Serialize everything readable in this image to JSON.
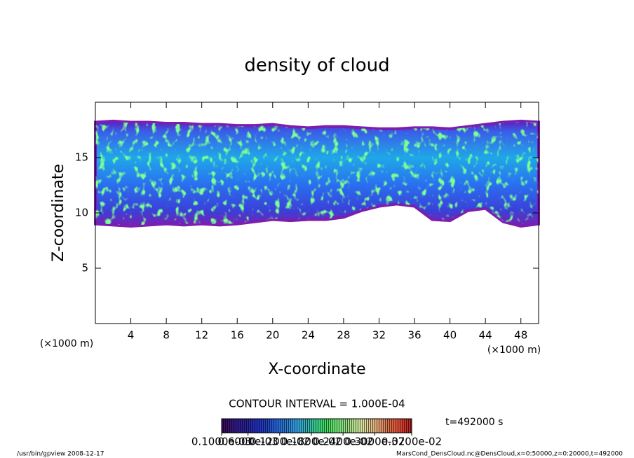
{
  "chart_data": {
    "type": "cloud",
    "title": "density of cloud",
    "x_label": "X-coordinate",
    "y_label": "Z-coordinate",
    "x_unit": "(×1000 m)",
    "y_unit": "(×1000 m)",
    "contour_interval": "CONTOUR INTERVAL = 1.000E-04",
    "time": "t=492000 s",
    "footer_left": "/usr/bin/gpview  2008-12-17",
    "footer_right": "MarsCond_DensCloud.nc@DensCloud,x=0:50000,z=0:20000,t=492000",
    "xlim": [
      0,
      50
    ],
    "xticks": [
      4,
      8,
      12,
      16,
      20,
      24,
      28,
      32,
      36,
      40,
      44,
      48
    ],
    "ylim": [
      0,
      20
    ],
    "yticks": [
      5,
      10,
      15
    ],
    "x": [
      0,
      2,
      4,
      6,
      8,
      10,
      12,
      14,
      16,
      18,
      20,
      22,
      24,
      26,
      28,
      30,
      32,
      34,
      36,
      38,
      40,
      42,
      44,
      46,
      48,
      50
    ],
    "series": [
      {
        "name": "cloud top",
        "color": "#7a1fb0",
        "values": [
          18.2,
          18.3,
          18.2,
          18.2,
          18.1,
          18.1,
          18.0,
          18.0,
          17.9,
          17.9,
          18.0,
          17.8,
          17.7,
          17.8,
          17.8,
          17.7,
          17.6,
          17.6,
          17.7,
          17.7,
          17.6,
          17.8,
          18.0,
          18.2,
          18.3,
          18.2
        ]
      },
      {
        "name": "cloud base",
        "color": "#7a1fb0",
        "values": [
          9.0,
          8.9,
          8.8,
          8.9,
          9.0,
          8.9,
          9.0,
          8.9,
          9.0,
          9.2,
          9.4,
          9.3,
          9.4,
          9.4,
          9.6,
          10.2,
          10.6,
          10.8,
          10.6,
          9.4,
          9.3,
          10.2,
          10.4,
          9.2,
          8.8,
          9.0
        ]
      }
    ],
    "colorbar": {
      "lim": [
        0.0001,
        0.0037
      ],
      "ticks": [
        {
          "value": 0.0001,
          "label": "0.1000e-03"
        },
        {
          "value": 0.0006,
          "label": "0.6000e-03"
        },
        {
          "value": 0.0012,
          "label": "0.1200e-02"
        },
        {
          "value": 0.0018,
          "label": "0.1800e-02"
        },
        {
          "value": 0.0024,
          "label": "0.2400e-02"
        },
        {
          "value": 0.003,
          "label": "0.3000e-02"
        },
        {
          "value": 0.0037,
          "label": "0.3700e-02"
        }
      ]
    }
  }
}
